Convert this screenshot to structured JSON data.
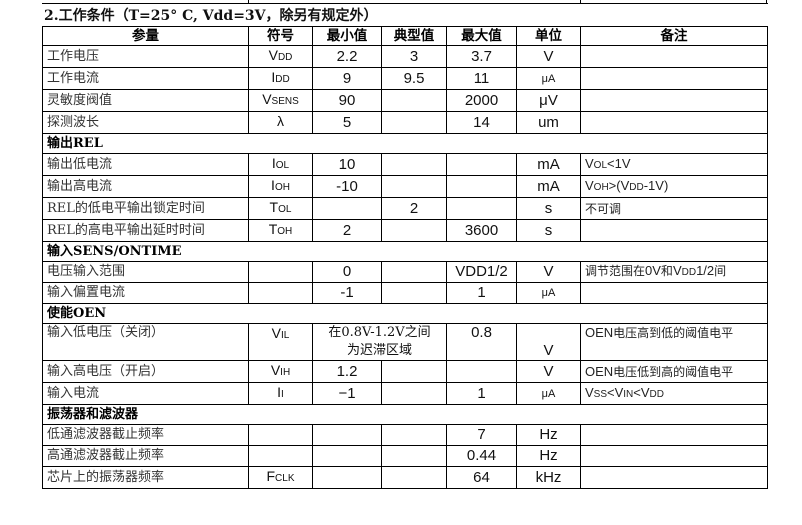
{
  "title": "2.工作条件（T=25° C, Vdd=3V，除另有规定外）",
  "headers": [
    "参量",
    "符号",
    "最小值",
    "典型值",
    "最大值",
    "单位",
    "备注"
  ],
  "rows": [
    {
      "param": "工作电压",
      "sym": {
        "main": "V",
        "sub": "DD"
      },
      "min": "2.2",
      "typ": "3",
      "max": "3.7",
      "unit": "V",
      "note": []
    },
    {
      "param": "工作电流",
      "sym": {
        "main": "I",
        "sub": "DD"
      },
      "min": "9",
      "typ": "9.5",
      "max": "11",
      "unit": "μA",
      "note": []
    },
    {
      "param": "灵敏度阀值",
      "sym": {
        "main": "V",
        "sub": "SENS"
      },
      "min": "90",
      "typ": "",
      "max": "2000",
      "unit": "μV",
      "note": []
    },
    {
      "param": "探测波长",
      "sym": {
        "main": "λ",
        "sub": ""
      },
      "min": "5",
      "typ": "",
      "max": "14",
      "unit": "um",
      "note": []
    },
    {
      "section": "输出REL"
    },
    {
      "param": "输出低电流",
      "sym": {
        "main": "I",
        "sub": "OL"
      },
      "min": "10",
      "typ": "",
      "max": "",
      "unit": "mA",
      "note": [
        {
          "t": "V"
        },
        {
          "s": "OL"
        },
        {
          "t": "<1V"
        }
      ]
    },
    {
      "param": "输出高电流",
      "sym": {
        "main": "I",
        "sub": "OH"
      },
      "min": "-10",
      "typ": "",
      "max": "",
      "unit": "mA",
      "note": [
        {
          "t": "V"
        },
        {
          "s": "OH"
        },
        {
          "t": ">(V"
        },
        {
          "s": "DD"
        },
        {
          "t": "-1V)"
        }
      ]
    },
    {
      "param": "REL的低电平输出锁定时间",
      "sym": {
        "main": "T",
        "sub": "OL"
      },
      "min": "",
      "typ": "2",
      "max": "",
      "unit": "s",
      "note": [
        {
          "c": "不可调"
        }
      ]
    },
    {
      "param": "REL的高电平输出延时时间",
      "sym": {
        "main": "T",
        "sub": "OH"
      },
      "min": "2",
      "typ": "",
      "max": "3600",
      "unit": "s",
      "note": []
    },
    {
      "section": "输入SENS/ONTIME"
    },
    {
      "param": "电压输入范围",
      "sym": {
        "main": "",
        "sub": ""
      },
      "min": "0",
      "typ": "",
      "max": "VDD1/2",
      "unit": "V",
      "note": [
        {
          "c": "调节范围在"
        },
        {
          "t": "0V"
        },
        {
          "c": "和"
        },
        {
          "t": "V"
        },
        {
          "s": "DD"
        },
        {
          "t": "1/2"
        },
        {
          "c": "间"
        }
      ]
    },
    {
      "param": "输入偏置电流",
      "sym": {
        "main": "",
        "sub": ""
      },
      "min": "-1",
      "typ": "",
      "max": "1",
      "unit": "μA",
      "note": []
    },
    {
      "section": "使能OEN"
    },
    {
      "param": "输入低电压（关闭）",
      "sym": {
        "main": "V",
        "sub": "IL"
      },
      "min": "在0.8V-1.2V之间为迟滞区域",
      "minspan": true,
      "max": "0.8",
      "unit": "V",
      "note": [
        {
          "t": "OEN"
        },
        {
          "c": "电压高到低的阈值电平"
        }
      ],
      "tall": true
    },
    {
      "param": "输入高电压（开启）",
      "sym": {
        "main": "V",
        "sub": "IH"
      },
      "min": "1.2",
      "typ": "",
      "max": "",
      "unit": "V",
      "note": [
        {
          "t": "OEN"
        },
        {
          "c": "电压低到高的阈值电平"
        }
      ]
    },
    {
      "param": "输入电流",
      "sym": {
        "main": "I",
        "sub": "I"
      },
      "min": "−1",
      "typ": "",
      "max": "1",
      "unit": "μA",
      "note": [
        {
          "t": "V"
        },
        {
          "s": "SS"
        },
        {
          "t": "<V"
        },
        {
          "s": "IN"
        },
        {
          "t": "<V"
        },
        {
          "s": "DD"
        }
      ]
    },
    {
      "section": "振荡器和滤波器"
    },
    {
      "param": "低通滤波器截止频率",
      "sym": {
        "main": "",
        "sub": ""
      },
      "min": "",
      "typ": "",
      "max": "7",
      "unit": "Hz",
      "note": []
    },
    {
      "param": "高通滤波器截止频率",
      "sym": {
        "main": "",
        "sub": ""
      },
      "min": "",
      "typ": "",
      "max": "0.44",
      "unit": "Hz",
      "note": []
    },
    {
      "param": "芯片上的振荡器频率",
      "sym": {
        "main": "F",
        "sub": "CLK"
      },
      "min": "",
      "typ": "",
      "max": "64",
      "unit": "kHz",
      "note": []
    }
  ]
}
